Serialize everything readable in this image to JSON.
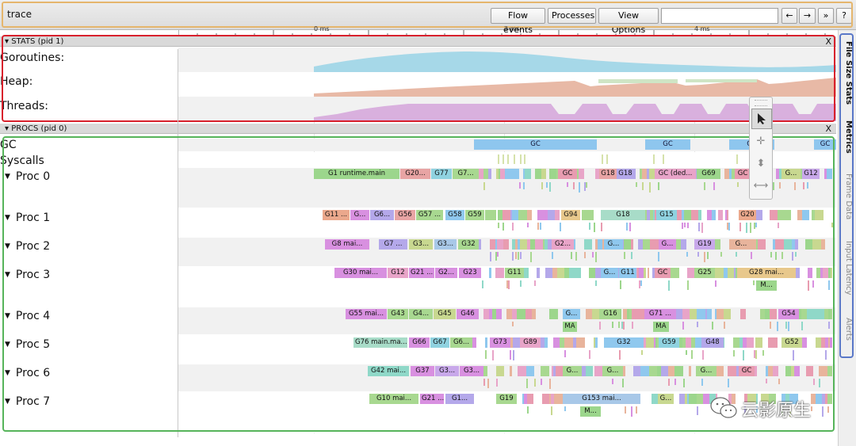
{
  "toolbar": {
    "title": "trace",
    "buttons": {
      "flow_events": "Flow events",
      "processes": "Processes",
      "view_options": "View Options",
      "nav_left": "←",
      "nav_right": "→",
      "nav_expand": "»",
      "help": "?"
    },
    "search_value": ""
  },
  "ruler": {
    "labels": [
      "0 ms",
      "2 ms",
      "4 ms"
    ]
  },
  "stats": {
    "header": "STATS (pid 1)",
    "close": "X",
    "rows": [
      "Goroutines:",
      "Heap:",
      "Threads:"
    ]
  },
  "procs": {
    "header": "PROCS (pid 0)",
    "close": "X",
    "gc_label": "GC",
    "syscalls_label": "Syscalls",
    "gc_bars": [
      "GC",
      "GC",
      "GC",
      "GC"
    ],
    "rows": [
      {
        "label": "Proc 0",
        "segments": [
          "G1 runtime.main",
          "G20...",
          "G77",
          "G7...",
          "GC",
          "G18",
          "G18",
          "GC (ded...",
          "G69",
          "GC",
          "G...",
          "G12"
        ]
      },
      {
        "label": "Proc 1",
        "segments": [
          "G11 ...",
          "G...",
          "G6...",
          "G56",
          "G57 ...",
          "G58",
          "G59",
          "G94",
          "G18",
          "G15",
          "G20"
        ]
      },
      {
        "label": "Proc 2",
        "segments": [
          "G8 mai...",
          "G7 ...",
          "G3...",
          "G3...",
          "G32",
          "G2...",
          "G...",
          "G...",
          "G19",
          "G..."
        ]
      },
      {
        "label": "Proc 3",
        "segments": [
          "G30 mai...",
          "G12",
          "G21 ...",
          "G2...",
          "G23",
          "G11",
          "G...",
          "G11",
          "GC",
          "G25",
          "G28 mai...",
          "M..."
        ]
      },
      {
        "label": "Proc 4",
        "segments": [
          "G55 mai...",
          "G43",
          "G4...",
          "G45",
          "G46",
          "G...",
          "MA",
          "G16",
          "G71 ...",
          "MA",
          "G54"
        ]
      },
      {
        "label": "Proc 5",
        "segments": [
          "G76 main.ma...",
          "G66",
          "G67",
          "G6...",
          "G73",
          "G89",
          "G32",
          "G59",
          "G48",
          "G52"
        ]
      },
      {
        "label": "Proc 6",
        "segments": [
          "G42 mai...",
          "G37",
          "G3...",
          "G3...",
          "G...",
          "G...",
          "G...",
          "GC"
        ]
      },
      {
        "label": "Proc 7",
        "segments": [
          "G10 mai...",
          "G21 ...",
          "G1...",
          "G19",
          "G153 mai...",
          "M...",
          "G..."
        ]
      }
    ]
  },
  "side_tabs": [
    {
      "label": "File Size Stats",
      "active": true
    },
    {
      "label": "Metrics",
      "active": true
    },
    {
      "label": "Frame Data",
      "active": false
    },
    {
      "label": "Input Latency",
      "active": false
    },
    {
      "label": "Alerts",
      "active": false
    }
  ],
  "watermark": {
    "text": "云影原生"
  },
  "colors": {
    "toolbar_outline": "#e5b66d",
    "stats_outline": "#d8202c",
    "procs_outline": "#56b45a",
    "side_outline": "#5a78c8",
    "goroutines": "#a6d8e8",
    "heap": "#e8b9a6",
    "threads": "#d9b0de",
    "gc": "#8ec6ee"
  }
}
